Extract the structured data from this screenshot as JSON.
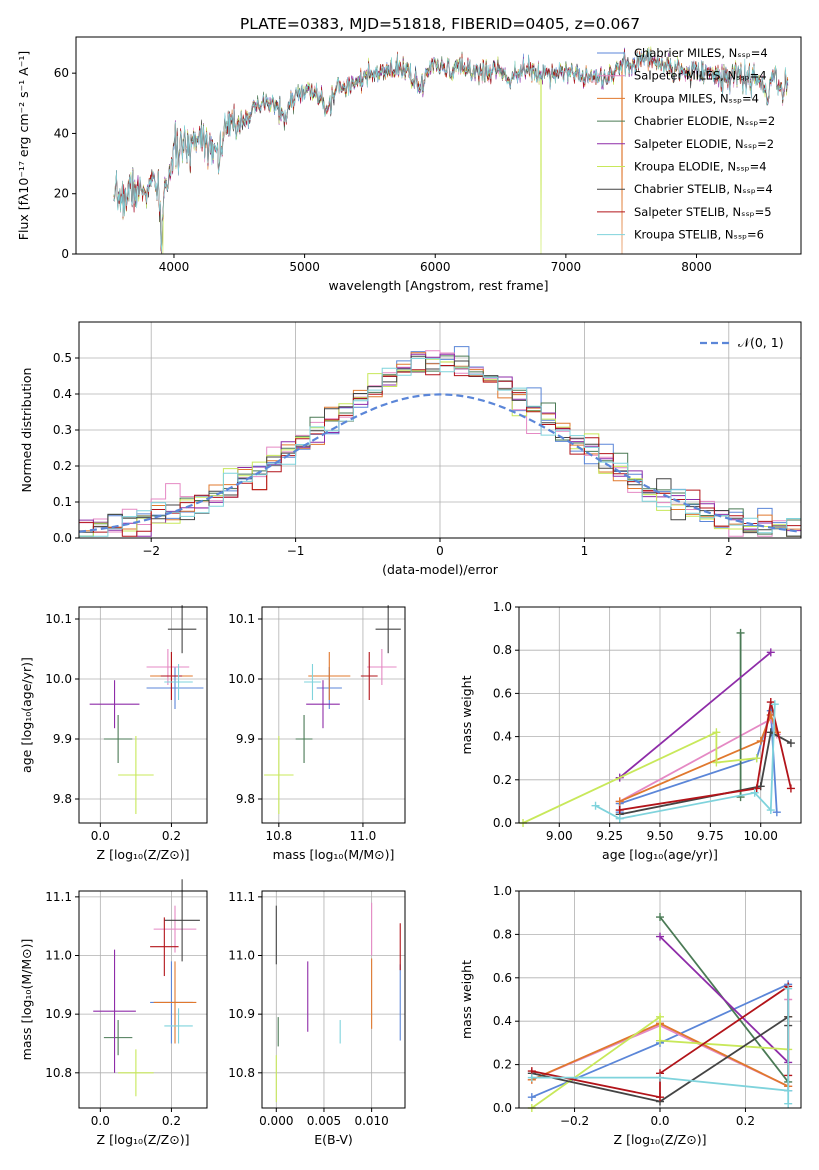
{
  "title": "PLATE=0383, MJD=51818, FIBERID=0405, z=0.067",
  "colors": {
    "Chabrier MILES": "#5b86d8",
    "Salpeter MILES": "#e589c4",
    "Kroupa MILES": "#e0782e",
    "Chabrier ELODIE": "#4a7a55",
    "Salpeter ELODIE": "#8e2ca8",
    "Kroupa ELODIE": "#c8e85a",
    "Chabrier STELIB": "#444444",
    "Salpeter STELIB": "#b2141a",
    "Kroupa STELIB": "#7fd3dc"
  },
  "chart_data": [
    {
      "id": "spectrum",
      "type": "line",
      "xlabel": "wavelength [Angstrom, rest frame]",
      "ylabel": "Flux [fλ10⁻¹⁷ erg cm⁻² s⁻¹ A⁻¹]",
      "xlim": [
        3250,
        8800
      ],
      "ylim": [
        0,
        72
      ],
      "xticks": [
        "4000",
        "5000",
        "6000",
        "7000",
        "8000"
      ],
      "yticks": [
        "0",
        "20",
        "40",
        "60"
      ],
      "grid": false,
      "legend_position": "top-right",
      "series": [
        {
          "name": "Chabrier MILES, Nₛₛₚ=4"
        },
        {
          "name": "Salpeter MILES, Nₛₛₚ=4"
        },
        {
          "name": "Kroupa MILES, Nₛₛₚ=4"
        },
        {
          "name": "Chabrier ELODIE, Nₛₛₚ=2"
        },
        {
          "name": "Salpeter ELODIE, Nₛₛₚ=2"
        },
        {
          "name": "Kroupa ELODIE, Nₛₛₚ=4"
        },
        {
          "name": "Chabrier STELIB, Nₛₛₚ=4"
        },
        {
          "name": "Salpeter STELIB, Nₛₛₚ=5"
        },
        {
          "name": "Kroupa STELIB, Nₛₛₚ=6"
        }
      ],
      "anchors": [
        [
          3540,
          14
        ],
        [
          3560,
          20
        ],
        [
          3620,
          18
        ],
        [
          3680,
          22
        ],
        [
          3740,
          20
        ],
        [
          3800,
          22
        ],
        [
          3850,
          24
        ],
        [
          3890,
          17
        ],
        [
          3905,
          4
        ],
        [
          3925,
          20
        ],
        [
          3970,
          28
        ],
        [
          4000,
          33
        ],
        [
          4050,
          36
        ],
        [
          4100,
          34
        ],
        [
          4150,
          38
        ],
        [
          4200,
          40
        ],
        [
          4300,
          36
        ],
        [
          4340,
          33
        ],
        [
          4400,
          41
        ],
        [
          4500,
          44
        ],
        [
          4600,
          47
        ],
        [
          4700,
          50
        ],
        [
          4800,
          49
        ],
        [
          4861,
          44
        ],
        [
          4900,
          52
        ],
        [
          5000,
          54
        ],
        [
          5100,
          53
        ],
        [
          5175,
          47
        ],
        [
          5250,
          56
        ],
        [
          5300,
          55
        ],
        [
          5400,
          58
        ],
        [
          5500,
          59
        ],
        [
          5600,
          60
        ],
        [
          5700,
          61
        ],
        [
          5800,
          61
        ],
        [
          5890,
          54
        ],
        [
          5950,
          62
        ],
        [
          6000,
          62
        ],
        [
          6100,
          61
        ],
        [
          6200,
          62
        ],
        [
          6300,
          61
        ],
        [
          6400,
          60
        ],
        [
          6500,
          62
        ],
        [
          6563,
          57
        ],
        [
          6600,
          61
        ],
        [
          6700,
          61
        ],
        [
          6800,
          60
        ],
        [
          6900,
          60
        ],
        [
          7000,
          61
        ],
        [
          7100,
          59
        ],
        [
          7200,
          60
        ],
        [
          7300,
          58
        ],
        [
          7400,
          62
        ],
        [
          7500,
          63
        ],
        [
          7600,
          65
        ],
        [
          7700,
          64
        ],
        [
          7800,
          62
        ],
        [
          7900,
          60
        ],
        [
          8000,
          62
        ],
        [
          8100,
          60
        ],
        [
          8200,
          58
        ],
        [
          8300,
          60
        ],
        [
          8400,
          58
        ],
        [
          8500,
          57
        ],
        [
          8550,
          52
        ],
        [
          8590,
          60
        ],
        [
          8660,
          53
        ],
        [
          8700,
          58
        ]
      ],
      "spikes": [
        [
          3915,
          0,
          "Kroupa ELODIE"
        ],
        [
          6810,
          0,
          "Kroupa ELODIE"
        ],
        [
          7430,
          0,
          "Kroupa MILES"
        ]
      ],
      "legend_labels": {
        "N_ssp": "Nₛₛₚ"
      }
    },
    {
      "id": "residuals",
      "type": "histogram",
      "xlabel": "(data-model)/error",
      "ylabel": "Normed distribution",
      "xlim": [
        -2.5,
        2.5
      ],
      "ylim": [
        0,
        0.6
      ],
      "xticks": [
        "−2",
        "−1",
        "0",
        "1",
        "2"
      ],
      "yticks": [
        "0.0",
        "0.1",
        "0.2",
        "0.3",
        "0.4",
        "0.5"
      ],
      "grid": true,
      "legend": "𝒩(0, 1)",
      "legend_position": "top-right",
      "bin_width": 0.1,
      "reference_curve": "normal pdf mean 0 std 1"
    },
    {
      "id": "age-vs-metallicity",
      "type": "scatter",
      "xlabel": "Z [log₁₀(Z/Z⊙)]",
      "ylabel": "age  [log₁₀(age/yr)]",
      "xlim": [
        -0.06,
        0.3
      ],
      "ylim": [
        9.76,
        10.12
      ],
      "xticks": [
        "0.0",
        "0.2"
      ],
      "yticks": [
        "9.8",
        "9.9",
        "10.0",
        "10.1"
      ],
      "grid": true,
      "points": [
        {
          "sps": "Chabrier MILES",
          "x": 0.21,
          "xerr": 0.08,
          "y": 9.985,
          "yerr": 0.035
        },
        {
          "sps": "Salpeter MILES",
          "x": 0.19,
          "xerr": 0.06,
          "y": 10.02,
          "yerr": 0.03
        },
        {
          "sps": "Kroupa MILES",
          "x": 0.2,
          "xerr": 0.06,
          "y": 10.005,
          "yerr": 0.04
        },
        {
          "sps": "Chabrier ELODIE",
          "x": 0.05,
          "xerr": 0.04,
          "y": 9.9,
          "yerr": 0.04
        },
        {
          "sps": "Salpeter ELODIE",
          "x": 0.04,
          "xerr": 0.07,
          "y": 9.958,
          "yerr": 0.04
        },
        {
          "sps": "Kroupa ELODIE",
          "x": 0.1,
          "xerr": 0.05,
          "y": 9.84,
          "yerr": 0.065
        },
        {
          "sps": "Chabrier STELIB",
          "x": 0.23,
          "xerr": 0.04,
          "y": 10.083,
          "yerr": 0.04
        },
        {
          "sps": "Salpeter STELIB",
          "x": 0.2,
          "xerr": 0.03,
          "y": 10.005,
          "yerr": 0.04
        },
        {
          "sps": "Kroupa STELIB",
          "x": 0.22,
          "xerr": 0.04,
          "y": 9.995,
          "yerr": 0.03
        }
      ]
    },
    {
      "id": "age-vs-mass",
      "type": "scatter",
      "xlabel": "mass [log₁₀(M/M⊙)]",
      "xlim": [
        10.76,
        11.1
      ],
      "ylim": [
        9.76,
        10.12
      ],
      "xticks": [
        "10.8",
        "11.0"
      ],
      "yticks": [
        "9.8",
        "9.9",
        "10.0",
        "10.1"
      ],
      "grid": true,
      "points": [
        {
          "sps": "Chabrier MILES",
          "x": 10.92,
          "xerr": 0.03,
          "y": 9.985,
          "yerr": 0.035
        },
        {
          "sps": "Salpeter MILES",
          "x": 11.045,
          "xerr": 0.035,
          "y": 10.02,
          "yerr": 0.03
        },
        {
          "sps": "Kroupa MILES",
          "x": 10.92,
          "xerr": 0.05,
          "y": 10.005,
          "yerr": 0.04
        },
        {
          "sps": "Chabrier ELODIE",
          "x": 10.86,
          "xerr": 0.02,
          "y": 9.9,
          "yerr": 0.04
        },
        {
          "sps": "Salpeter ELODIE",
          "x": 10.905,
          "xerr": 0.04,
          "y": 9.958,
          "yerr": 0.04
        },
        {
          "sps": "Kroupa ELODIE",
          "x": 10.8,
          "xerr": 0.035,
          "y": 9.84,
          "yerr": 0.065
        },
        {
          "sps": "Chabrier STELIB",
          "x": 11.06,
          "xerr": 0.03,
          "y": 10.083,
          "yerr": 0.04
        },
        {
          "sps": "Salpeter STELIB",
          "x": 11.015,
          "xerr": 0.02,
          "y": 10.005,
          "yerr": 0.04
        },
        {
          "sps": "Kroupa STELIB",
          "x": 10.88,
          "xerr": 0.02,
          "y": 9.995,
          "yerr": 0.03
        }
      ]
    },
    {
      "id": "mass-weight-vs-age",
      "type": "line",
      "xlabel": "age  [log₁₀(age/yr)]",
      "ylabel": "mass weight",
      "xlim": [
        8.8,
        10.2
      ],
      "ylim": [
        0,
        1
      ],
      "xticks": [
        "9.00",
        "9.25",
        "9.50",
        "9.75",
        "10.00"
      ],
      "yticks": [
        "0.0",
        "0.2",
        "0.4",
        "0.6",
        "0.8",
        "1.0"
      ],
      "grid": true,
      "series": [
        {
          "sps": "Chabrier MILES",
          "points": [
            [
              9.3,
              0.05
            ],
            [
              9.3,
              0.09
            ],
            [
              9.98,
              0.3
            ],
            [
              10.05,
              0.52
            ],
            [
              10.08,
              0.05
            ]
          ]
        },
        {
          "sps": "Salpeter MILES",
          "points": [
            [
              9.3,
              0.1
            ],
            [
              10.05,
              0.48
            ],
            [
              10.05,
              0.5
            ],
            [
              10.08,
              0.41
            ]
          ]
        },
        {
          "sps": "Kroupa MILES",
          "points": [
            [
              9.3,
              0.1
            ],
            [
              10.0,
              0.38
            ],
            [
              10.05,
              0.5
            ],
            [
              10.08,
              0.42
            ]
          ]
        },
        {
          "sps": "Chabrier ELODIE",
          "points": [
            [
              9.9,
              0.12
            ],
            [
              9.9,
              0.88
            ]
          ]
        },
        {
          "sps": "Salpeter ELODIE",
          "points": [
            [
              9.3,
              0.21
            ],
            [
              10.05,
              0.79
            ]
          ]
        },
        {
          "sps": "Kroupa ELODIE",
          "points": [
            [
              8.82,
              0.0
            ],
            [
              9.78,
              0.42
            ],
            [
              9.78,
              0.28
            ],
            [
              9.98,
              0.3
            ]
          ]
        },
        {
          "sps": "Chabrier STELIB",
          "points": [
            [
              9.3,
              0.04
            ],
            [
              10.0,
              0.17
            ],
            [
              10.05,
              0.42
            ],
            [
              10.15,
              0.37
            ]
          ]
        },
        {
          "sps": "Salpeter STELIB",
          "points": [
            [
              9.3,
              0.06
            ],
            [
              9.98,
              0.16
            ],
            [
              10.05,
              0.56
            ],
            [
              10.15,
              0.16
            ]
          ]
        },
        {
          "sps": "Kroupa STELIB",
          "points": [
            [
              9.18,
              0.08
            ],
            [
              9.3,
              0.02
            ],
            [
              9.97,
              0.14
            ],
            [
              10.05,
              0.06
            ],
            [
              10.07,
              0.55
            ]
          ]
        }
      ]
    },
    {
      "id": "mass-vs-metallicity",
      "type": "scatter",
      "xlabel": "Z [log₁₀(Z/Z⊙)]",
      "ylabel": "mass [log₁₀(M/M⊙)]",
      "xlim": [
        -0.06,
        0.3
      ],
      "ylim": [
        10.74,
        11.11
      ],
      "xticks": [
        "0.0",
        "0.2"
      ],
      "yticks": [
        "10.8",
        "10.9",
        "11.0",
        "11.1"
      ],
      "grid": true,
      "points": [
        {
          "sps": "Chabrier MILES",
          "x": 0.2,
          "xerr": 0.06,
          "y": 10.92,
          "yerr": 0.07
        },
        {
          "sps": "Salpeter MILES",
          "x": 0.21,
          "xerr": 0.06,
          "y": 11.045,
          "yerr": 0.04
        },
        {
          "sps": "Kroupa MILES",
          "x": 0.21,
          "xerr": 0.06,
          "y": 10.92,
          "yerr": 0.07
        },
        {
          "sps": "Chabrier ELODIE",
          "x": 0.05,
          "xerr": 0.04,
          "y": 10.86,
          "yerr": 0.03
        },
        {
          "sps": "Salpeter ELODIE",
          "x": 0.04,
          "xerr": 0.06,
          "y": 10.905,
          "yerr": 0.105
        },
        {
          "sps": "Kroupa ELODIE",
          "x": 0.1,
          "xerr": 0.05,
          "y": 10.8,
          "yerr": 0.04
        },
        {
          "sps": "Chabrier STELIB",
          "x": 0.23,
          "xerr": 0.05,
          "y": 11.06,
          "yerr": 0.07
        },
        {
          "sps": "Salpeter STELIB",
          "x": 0.18,
          "xerr": 0.04,
          "y": 11.015,
          "yerr": 0.05
        },
        {
          "sps": "Kroupa STELIB",
          "x": 0.22,
          "xerr": 0.04,
          "y": 10.88,
          "yerr": 0.03
        }
      ]
    },
    {
      "id": "mass-vs-extinction",
      "type": "scatter",
      "xlabel": "E(B-V)",
      "xlim": [
        -0.0015,
        0.0135
      ],
      "ylim": [
        10.74,
        11.11
      ],
      "xticks": [
        "0.000",
        "0.005",
        "0.010"
      ],
      "yticks": [
        "10.8",
        "10.9",
        "11.0",
        "11.1"
      ],
      "grid": true,
      "points": [
        {
          "sps": "Chabrier MILES",
          "x": 0.013,
          "xerr": 0,
          "y": 10.92,
          "yerr": 0.065
        },
        {
          "sps": "Salpeter MILES",
          "x": 0.01,
          "xerr": 0,
          "y": 11.045,
          "yerr": 0.045
        },
        {
          "sps": "Kroupa MILES",
          "x": 0.01,
          "xerr": 0,
          "y": 10.935,
          "yerr": 0.06
        },
        {
          "sps": "Chabrier ELODIE",
          "x": 0.0002,
          "xerr": 0,
          "y": 10.87,
          "yerr": 0.025
        },
        {
          "sps": "Salpeter ELODIE",
          "x": 0.0033,
          "xerr": 0,
          "y": 10.93,
          "yerr": 0.06
        },
        {
          "sps": "Kroupa ELODIE",
          "x": 0.0,
          "xerr": 0,
          "y": 10.79,
          "yerr": 0.04
        },
        {
          "sps": "Chabrier STELIB",
          "x": 0.0,
          "xerr": 0,
          "y": 11.035,
          "yerr": 0.05
        },
        {
          "sps": "Salpeter STELIB",
          "x": 0.013,
          "xerr": 0,
          "y": 11.015,
          "yerr": 0.04
        },
        {
          "sps": "Kroupa STELIB",
          "x": 0.0067,
          "xerr": 0,
          "y": 10.87,
          "yerr": 0.02
        }
      ]
    },
    {
      "id": "mass-weight-vs-metallicity",
      "type": "line",
      "xlabel": "Z [log₁₀(Z/Z⊙)]",
      "ylabel": "mass weight",
      "xlim": [
        -0.33,
        0.33
      ],
      "ylim": [
        0,
        1
      ],
      "xticks": [
        "−0.2",
        "0.0",
        "0.2"
      ],
      "yticks": [
        "0.0",
        "0.2",
        "0.4",
        "0.6",
        "0.8",
        "1.0"
      ],
      "grid": true,
      "series": [
        {
          "sps": "Chabrier MILES",
          "points": [
            [
              -0.3,
              0.05
            ],
            [
              0.0,
              0.3
            ],
            [
              0.3,
              0.57
            ],
            [
              0.3,
              0.08
            ]
          ]
        },
        {
          "sps": "Salpeter MILES",
          "points": [
            [
              -0.3,
              0.13
            ],
            [
              0.0,
              0.38
            ],
            [
              0.3,
              0.1
            ],
            [
              0.3,
              0.5
            ]
          ]
        },
        {
          "sps": "Kroupa MILES",
          "points": [
            [
              -0.3,
              0.13
            ],
            [
              0.0,
              0.39
            ],
            [
              0.3,
              0.1
            ],
            [
              0.3,
              0.42
            ]
          ]
        },
        {
          "sps": "Chabrier ELODIE",
          "points": [
            [
              0.0,
              0.88
            ],
            [
              0.3,
              0.12
            ]
          ]
        },
        {
          "sps": "Salpeter ELODIE",
          "points": [
            [
              0.0,
              0.79
            ],
            [
              0.3,
              0.21
            ]
          ]
        },
        {
          "sps": "Kroupa ELODIE",
          "points": [
            [
              -0.3,
              0.0
            ],
            [
              0.0,
              0.42
            ],
            [
              0.0,
              0.31
            ],
            [
              0.3,
              0.27
            ]
          ]
        },
        {
          "sps": "Chabrier STELIB",
          "points": [
            [
              -0.3,
              0.16
            ],
            [
              0.0,
              0.03
            ],
            [
              0.3,
              0.42
            ],
            [
              0.3,
              0.38
            ]
          ]
        },
        {
          "sps": "Salpeter STELIB",
          "points": [
            [
              -0.3,
              0.17
            ],
            [
              0.0,
              0.05
            ],
            [
              0.0,
              0.16
            ],
            [
              0.3,
              0.56
            ],
            [
              0.3,
              0.15
            ]
          ]
        },
        {
          "sps": "Kroupa STELIB",
          "points": [
            [
              -0.3,
              0.14
            ],
            [
              0.0,
              0.14
            ],
            [
              0.3,
              0.08
            ],
            [
              0.3,
              0.55
            ],
            [
              0.3,
              0.02
            ]
          ]
        }
      ]
    }
  ]
}
